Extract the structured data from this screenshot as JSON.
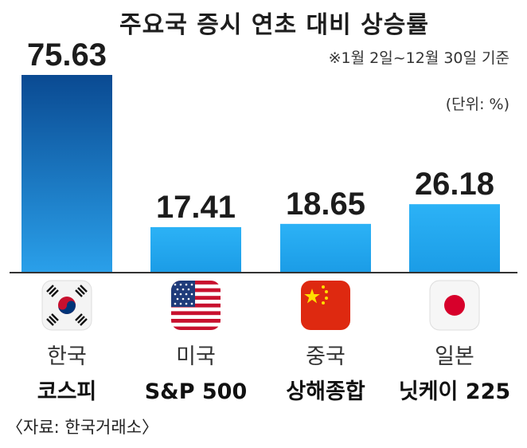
{
  "title": "주요국 증시 연초 대비 상승률",
  "subtitle": "※1월 2일~12월 30일 기준",
  "unit": "(단위: %)",
  "source": "〈자료: 한국거래소〉",
  "chart_data": {
    "type": "bar",
    "categories": [
      "코스피",
      "S&P 500",
      "상해종합",
      "닛케이 225"
    ],
    "countries": [
      "한국",
      "미국",
      "중국",
      "일본"
    ],
    "values": [
      75.63,
      17.41,
      18.65,
      26.18
    ],
    "value_labels": [
      "75.63",
      "17.41",
      "18.65",
      "26.18"
    ],
    "flags": [
      "korea-flag",
      "usa-flag",
      "china-flag",
      "japan-flag"
    ],
    "title": "주요국 증시 연초 대비 상승률",
    "ylim": [
      0,
      80
    ],
    "grid": false,
    "colors": {
      "highlight_top": "#0a4a92",
      "highlight_bottom": "#2aa0ea",
      "bar": "#23aaf0",
      "baseline": "#333333"
    }
  }
}
